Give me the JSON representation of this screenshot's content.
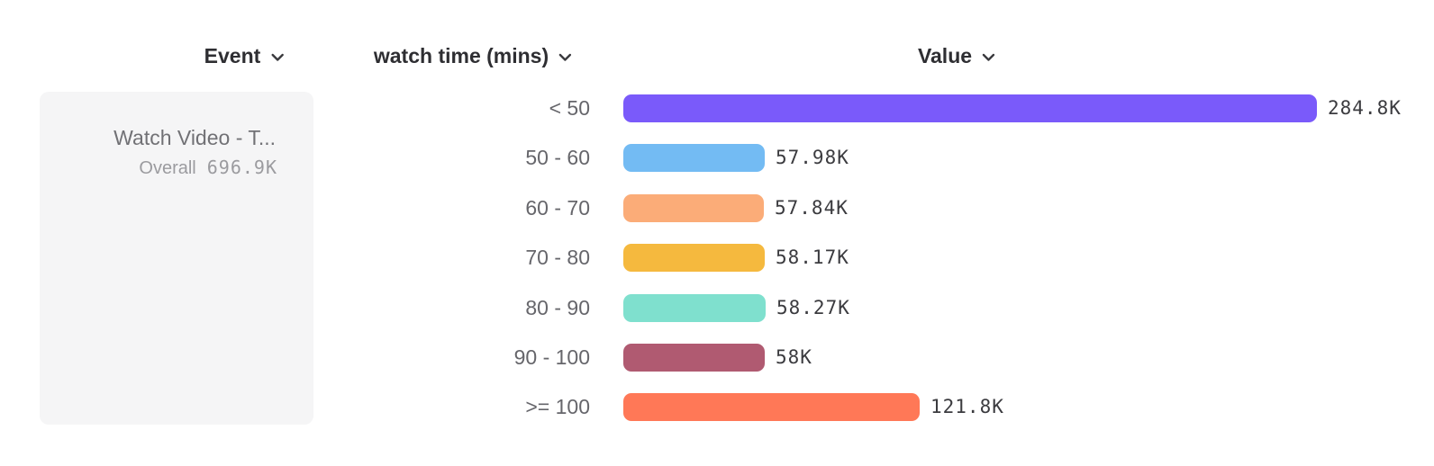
{
  "headers": {
    "event": {
      "label": "Event"
    },
    "breakdown": {
      "label": "watch time (mins)"
    },
    "value": {
      "label": "Value"
    }
  },
  "event_panel": {
    "name": "Watch Video - T...",
    "overall_label": "Overall",
    "overall_value": "696.9K"
  },
  "colors": {
    "header_text": "#2e2e32",
    "bucket_label": "#66666b",
    "value_text": "#3b3b3f",
    "panel_bg": "#f5f5f6"
  },
  "chart_data": {
    "type": "bar",
    "orientation": "horizontal",
    "title": "",
    "xlabel": "Value",
    "ylabel": "watch time (mins)",
    "legend": false,
    "grid": false,
    "categories": [
      "< 50",
      "50 - 60",
      "60 - 70",
      "70 - 80",
      "80 - 90",
      "90 - 100",
      ">= 100"
    ],
    "values": [
      284800,
      57980,
      57840,
      58170,
      58270,
      58000,
      121800
    ],
    "value_labels": [
      "284.8K",
      "57.98K",
      "57.84K",
      "58.17K",
      "58.27K",
      "58K",
      "121.8K"
    ],
    "bar_colors": [
      "#7A5AFA",
      "#73BBF3",
      "#FBAC78",
      "#F5B93E",
      "#7FE0CE",
      "#B05A71",
      "#FF7857"
    ],
    "max_value": 284800,
    "overall_total": 696900
  }
}
